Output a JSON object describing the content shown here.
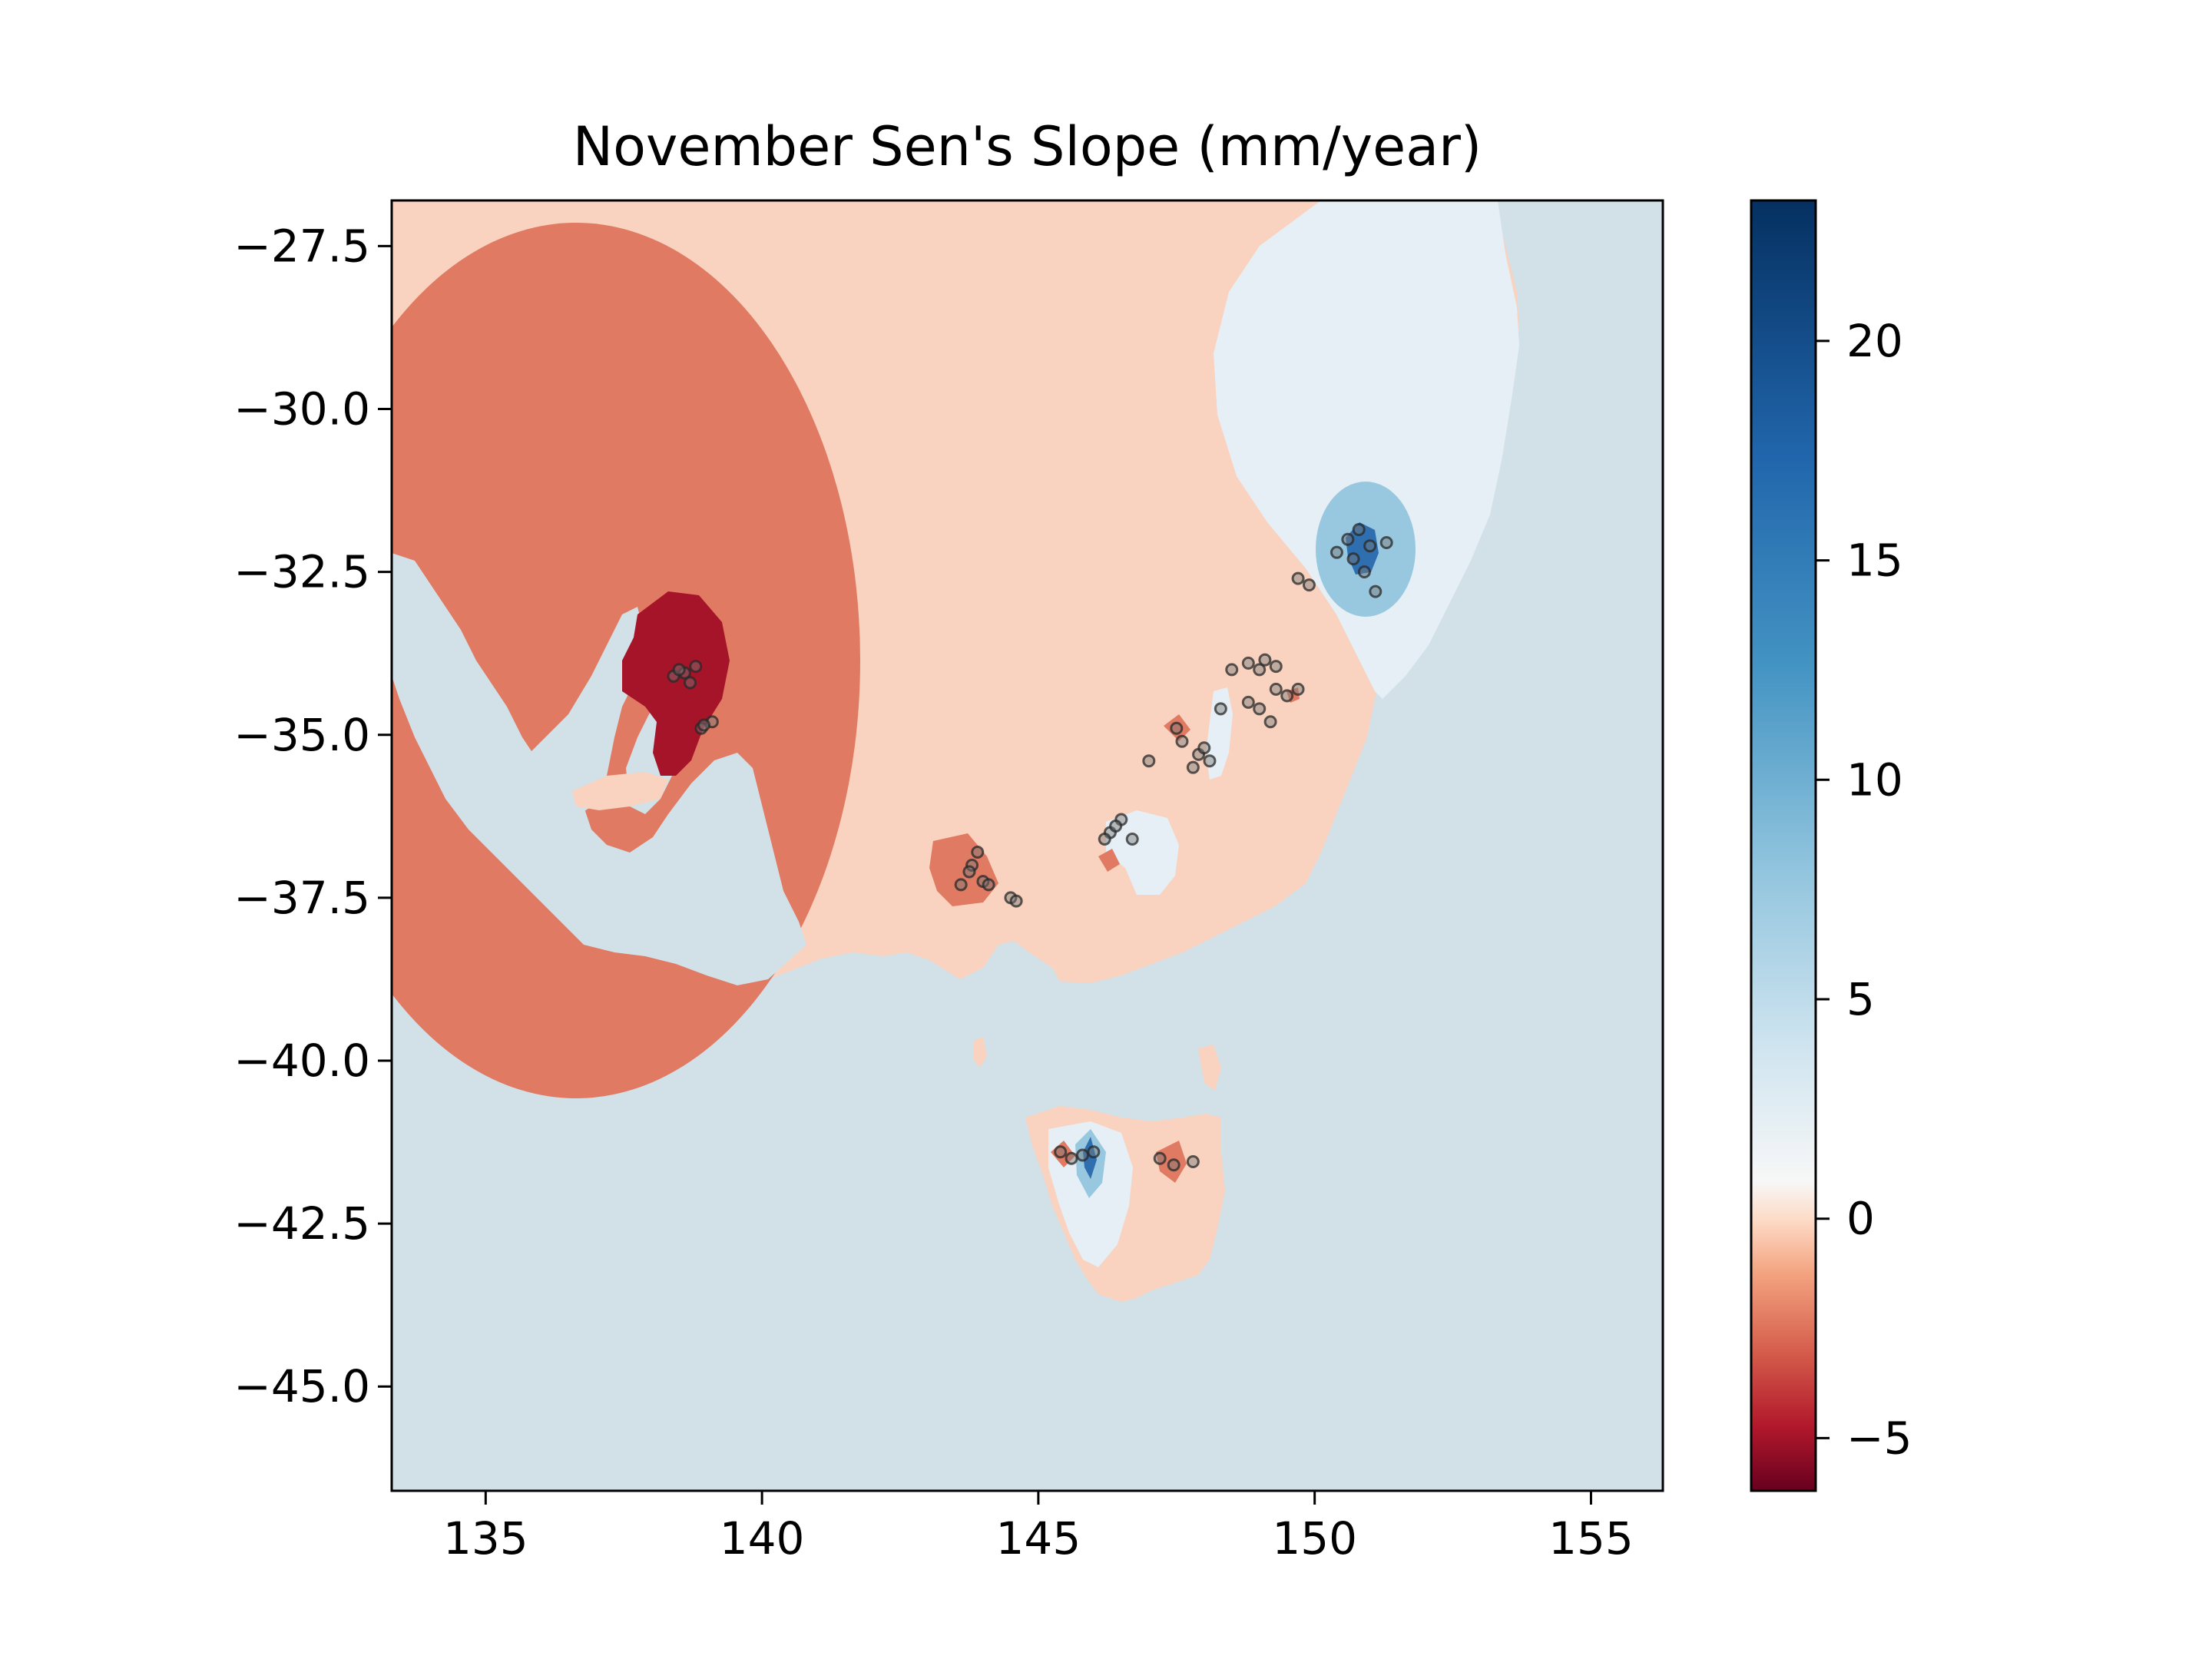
{
  "chart_data": {
    "type": "heatmap",
    "title": "November Sen's Slope (mm/year)",
    "xlabel": "",
    "ylabel": "",
    "xlim": [
      133.3,
      156.3
    ],
    "ylim": [
      -46.6,
      -26.8
    ],
    "x_ticks": [
      "135",
      "140",
      "145",
      "150",
      "155"
    ],
    "x_tick_values": [
      135,
      140,
      145,
      150,
      155
    ],
    "y_ticks": [
      "−27.5",
      "−30.0",
      "−32.5",
      "−35.0",
      "−37.5",
      "−40.0",
      "−42.5",
      "−45.0"
    ],
    "y_tick_values": [
      -27.5,
      -30.0,
      -32.5,
      -35.0,
      -37.5,
      -40.0,
      -42.5,
      -45.0
    ],
    "colorbar": {
      "cmap": "RdBu",
      "range": [
        -6.2,
        23.2
      ],
      "ticks": [
        "−5",
        "0",
        "5",
        "10",
        "15",
        "20"
      ],
      "tick_values": [
        -5,
        0,
        5,
        10,
        15,
        20
      ]
    },
    "colors": {
      "ocean": "#d2e0e8",
      "slope_minus_1": "#f9d3bf",
      "slope_minus_3": "#e07a62",
      "slope_minus_6": "#a51429",
      "slope_plus_2": "#e6eff5",
      "slope_plus_8": "#98c8e0",
      "slope_plus_16": "#2f6fb0",
      "slope_plus_22": "#0d3868"
    },
    "stations": [
      [
        138.4,
        -34.1
      ],
      [
        138.6,
        -34.05
      ],
      [
        138.8,
        -33.95
      ],
      [
        138.7,
        -34.2
      ],
      [
        138.5,
        -34.0
      ],
      [
        138.9,
        -34.9
      ],
      [
        139.1,
        -34.8
      ],
      [
        138.95,
        -34.85
      ],
      [
        143.8,
        -37.0
      ],
      [
        143.9,
        -36.8
      ],
      [
        143.6,
        -37.3
      ],
      [
        144.0,
        -37.25
      ],
      [
        144.1,
        -37.3
      ],
      [
        144.5,
        -37.5
      ],
      [
        144.6,
        -37.55
      ],
      [
        143.75,
        -37.1
      ],
      [
        146.3,
        -36.5
      ],
      [
        146.5,
        -36.3
      ],
      [
        146.7,
        -36.6
      ],
      [
        146.4,
        -36.4
      ],
      [
        146.2,
        -36.6
      ],
      [
        147.0,
        -35.4
      ],
      [
        147.5,
        -34.9
      ],
      [
        147.9,
        -35.3
      ],
      [
        148.0,
        -35.2
      ],
      [
        148.1,
        -35.4
      ],
      [
        147.8,
        -35.5
      ],
      [
        147.6,
        -35.1
      ],
      [
        148.3,
        -34.6
      ],
      [
        148.5,
        -34.0
      ],
      [
        148.8,
        -33.9
      ],
      [
        149.0,
        -34.0
      ],
      [
        149.1,
        -33.85
      ],
      [
        149.3,
        -33.95
      ],
      [
        148.8,
        -34.5
      ],
      [
        149.0,
        -34.6
      ],
      [
        149.3,
        -34.3
      ],
      [
        149.5,
        -34.4
      ],
      [
        149.7,
        -34.3
      ],
      [
        149.2,
        -34.8
      ],
      [
        149.7,
        -32.6
      ],
      [
        149.9,
        -32.7
      ],
      [
        150.4,
        -32.2
      ],
      [
        150.6,
        -32.0
      ],
      [
        150.8,
        -31.85
      ],
      [
        150.7,
        -32.3
      ],
      [
        151.0,
        -32.1
      ],
      [
        151.3,
        -32.05
      ],
      [
        151.1,
        -32.8
      ],
      [
        150.9,
        -32.5
      ],
      [
        145.4,
        -41.4
      ],
      [
        145.6,
        -41.5
      ],
      [
        145.8,
        -41.45
      ],
      [
        146.0,
        -41.4
      ],
      [
        147.2,
        -41.5
      ],
      [
        147.45,
        -41.6
      ],
      [
        147.8,
        -41.55
      ]
    ]
  }
}
